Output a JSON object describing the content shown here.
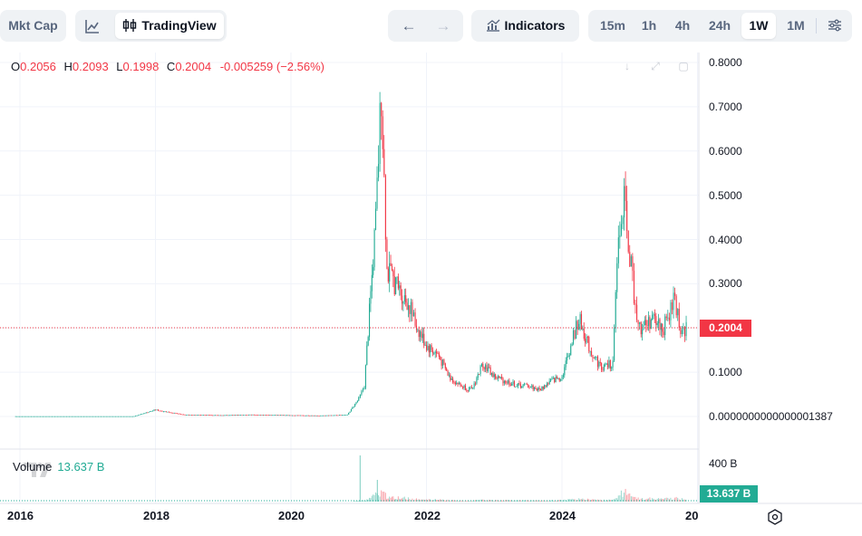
{
  "toolbar": {
    "mkt_cap": "Mkt Cap",
    "tradingview": "TradingView",
    "indicators": "Indicators",
    "timeframes": [
      "15m",
      "1h",
      "4h",
      "24h",
      "1W",
      "1M"
    ],
    "active_timeframe": "1W"
  },
  "legend": {
    "o_label": "O",
    "o": "0.2056",
    "h_label": "H",
    "h": "0.2093",
    "l_label": "L",
    "l": "0.1998",
    "c_label": "C",
    "c": "0.2004",
    "change": "-0.005259 (−2.56%)"
  },
  "volume_legend": {
    "label": "Volume",
    "value": "13.637 B"
  },
  "price_tag": "0.2004",
  "volume_tag": "13.637 B",
  "volume_axis_label": "400 B",
  "colors": {
    "up": "#22ab94",
    "down": "#f23645",
    "grid": "#f0f3fa",
    "accent": "#2962ff"
  },
  "chart_data": {
    "type": "candlestick",
    "y_ticks": [
      "0.8000",
      "0.7000",
      "0.6000",
      "0.5000",
      "0.4000",
      "0.3000",
      "0.1000",
      "0.0000000000000001387"
    ],
    "ylim": [
      0,
      0.8
    ],
    "x_ticks": [
      "2016",
      "2018",
      "2020",
      "2022",
      "2024",
      "20"
    ],
    "last_price": 0.2004,
    "series": [
      {
        "name": "Price",
        "points": [
          [
            "2015-12",
            0.0
          ],
          [
            "2016-06",
            0.0
          ],
          [
            "2017-01",
            0.0
          ],
          [
            "2017-09",
            0.0
          ],
          [
            "2018-01",
            0.015
          ],
          [
            "2018-06",
            0.004
          ],
          [
            "2019-01",
            0.003
          ],
          [
            "2019-06",
            0.004
          ],
          [
            "2020-01",
            0.003
          ],
          [
            "2020-06",
            0.002
          ],
          [
            "2020-11",
            0.004
          ],
          [
            "2021-01",
            0.04
          ],
          [
            "2021-02",
            0.07
          ],
          [
            "2021-04",
            0.44
          ],
          [
            "2021-05",
            0.74
          ],
          [
            "2021-06",
            0.33
          ],
          [
            "2021-08",
            0.29
          ],
          [
            "2021-10",
            0.25
          ],
          [
            "2021-11",
            0.21
          ],
          [
            "2022-01",
            0.16
          ],
          [
            "2022-03",
            0.14
          ],
          [
            "2022-05",
            0.09
          ],
          [
            "2022-07",
            0.07
          ],
          [
            "2022-09",
            0.06
          ],
          [
            "2022-11",
            0.12
          ],
          [
            "2023-01",
            0.09
          ],
          [
            "2023-03",
            0.08
          ],
          [
            "2023-05",
            0.07
          ],
          [
            "2023-07",
            0.07
          ],
          [
            "2023-09",
            0.06
          ],
          [
            "2023-11",
            0.08
          ],
          [
            "2024-01",
            0.09
          ],
          [
            "2024-03",
            0.18
          ],
          [
            "2024-04",
            0.22
          ],
          [
            "2024-06",
            0.15
          ],
          [
            "2024-08",
            0.11
          ],
          [
            "2024-10",
            0.12
          ],
          [
            "2024-11",
            0.4
          ],
          [
            "2024-12",
            0.48
          ],
          [
            "2025-01",
            0.36
          ],
          [
            "2025-02",
            0.25
          ],
          [
            "2025-03",
            0.2
          ],
          [
            "2025-05",
            0.22
          ],
          [
            "2025-07",
            0.2
          ],
          [
            "2025-08",
            0.23
          ],
          [
            "2025-09",
            0.27
          ],
          [
            "2025-10",
            0.19
          ],
          [
            "2025-11",
            0.2004
          ]
        ]
      }
    ],
    "volume": {
      "axis_max_label": "400 B",
      "last": "13.637 B"
    }
  }
}
